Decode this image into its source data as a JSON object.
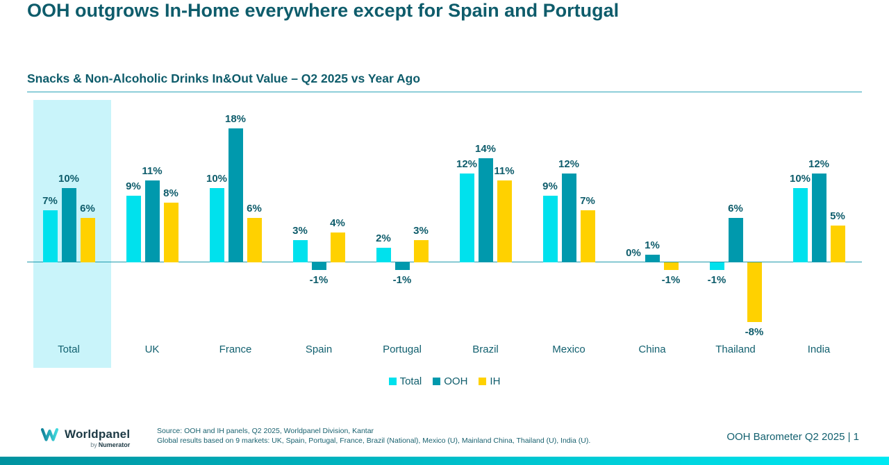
{
  "header": {
    "title": "OOH outgrows In-Home everywhere except for Spain and Portugal",
    "subtitle": "Snacks & Non-Alcoholic Drinks In&Out Value – Q2 2025 vs Year Ago"
  },
  "chart_data": {
    "type": "bar",
    "title": "Snacks & Non-Alcoholic Drinks In&Out Value – Q2 2025 vs Year Ago",
    "categories": [
      "Total",
      "UK",
      "France",
      "Spain",
      "Portugal",
      "Brazil",
      "Mexico",
      "China",
      "Thailand",
      "India"
    ],
    "series": [
      {
        "name": "Total",
        "color": "#00E1ED",
        "values": [
          7,
          9,
          10,
          3,
          2,
          12,
          9,
          0,
          -1,
          10
        ]
      },
      {
        "name": "OOH",
        "color": "#0099AD",
        "values": [
          10,
          11,
          18,
          -1,
          -1,
          14,
          12,
          1,
          6,
          12
        ]
      },
      {
        "name": "IH",
        "color": "#FFD100",
        "values": [
          6,
          8,
          6,
          4,
          3,
          11,
          7,
          -1,
          -8,
          5
        ]
      }
    ],
    "value_suffix": "%",
    "ylim": [
      -10,
      20
    ],
    "grid": false,
    "legend_position": "bottom",
    "highlighted_category": "Total",
    "highlight_color": "#C9F4FA",
    "axis_color": "#1E9AAC",
    "label_color": "#0E5C6B"
  },
  "legend": {
    "items": [
      {
        "label": "Total",
        "color": "#00E1ED"
      },
      {
        "label": "OOH",
        "color": "#0099AD"
      },
      {
        "label": "IH",
        "color": "#FFD100"
      }
    ]
  },
  "footer": {
    "logo_brand": "Worldpanel",
    "logo_byline_prefix": "by",
    "logo_byline": "Numerator",
    "source_line1": "Source: OOH and IH panels, Q2 2025, Worldpanel Division, Kantar",
    "source_line2": "Global results based on 9 markets: UK, Spain, Portugal, France, Brazil (National), Mexico (U), Mainland China, Thailand (U), India (U).",
    "page_label": "OOH Barometer Q2 2025 | 1"
  },
  "colors": {
    "title_text": "#0E5C6B",
    "bottom_bar_left": "#00929F",
    "bottom_bar_right": "#00E9F2"
  }
}
